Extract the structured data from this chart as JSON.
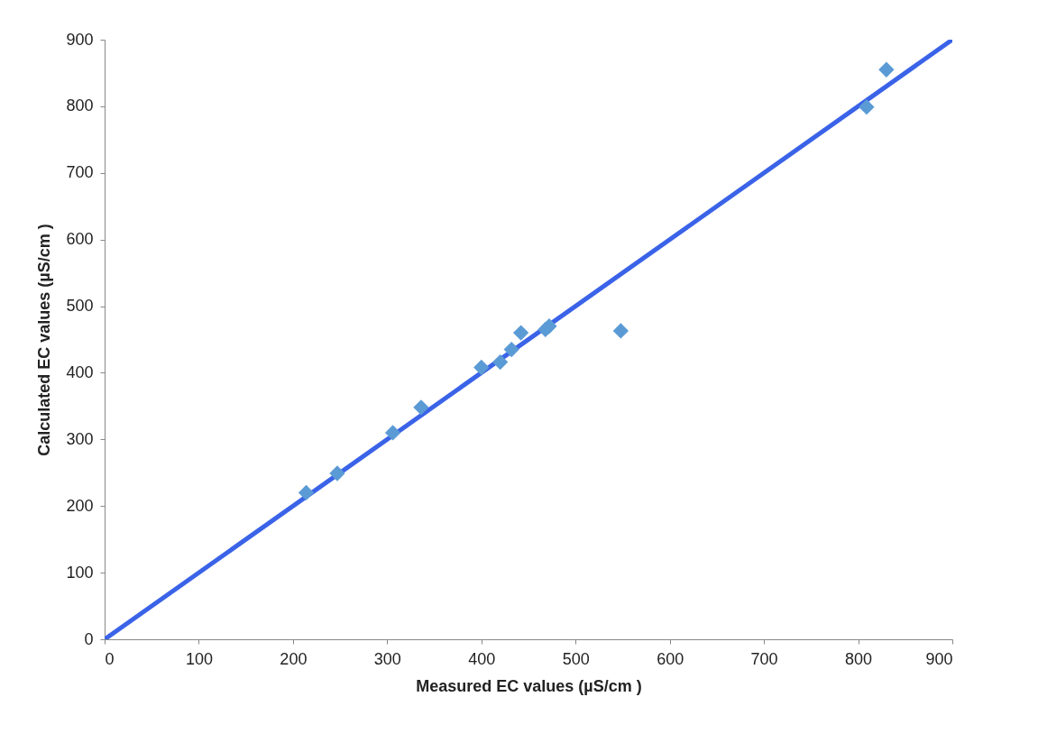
{
  "chart_data": {
    "type": "scatter",
    "xlabel": "Measured EC values (µS/cm )",
    "ylabel": "Calculated EC values (µS/cm )",
    "marker": "diamond",
    "grid": false,
    "xlim": [
      0,
      900
    ],
    "ylim": [
      0,
      900
    ],
    "xticks": [
      0,
      100,
      200,
      300,
      400,
      500,
      600,
      700,
      800,
      900
    ],
    "yticks": [
      0,
      100,
      200,
      300,
      400,
      500,
      600,
      700,
      800,
      900
    ],
    "series": [
      {
        "type": "line",
        "marker": "none",
        "color": "#3a63e8",
        "x": [
          0,
          900
        ],
        "values": [
          0,
          900
        ]
      },
      {
        "color": "#5b9bd5",
        "x": [
          214,
          247,
          306,
          336,
          400,
          420,
          432,
          442,
          468,
          472,
          548,
          809,
          830
        ],
        "values": [
          220,
          249,
          310,
          348,
          408,
          416,
          435,
          460,
          465,
          470,
          463,
          799,
          855
        ]
      }
    ]
  }
}
